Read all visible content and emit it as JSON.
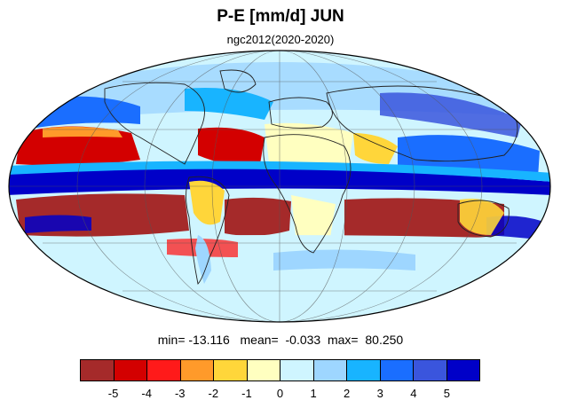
{
  "title": "P-E [mm/d] JUN",
  "subtitle": "ngc2012(2020-2020)",
  "stats": {
    "min_label": "min=",
    "min_value": "-13.116",
    "mean_label": "mean=",
    "mean_value": "-0.033",
    "max_label": "max=",
    "max_value": "80.250"
  },
  "colorbar": {
    "colors": [
      "#a52a2a",
      "#d30000",
      "#ff1a1a",
      "#ff9a2a",
      "#ffd63a",
      "#ffffc0",
      "#cff5ff",
      "#9ed6ff",
      "#18b4ff",
      "#1a6eff",
      "#3a55dd",
      "#0000c8"
    ],
    "labels": [
      "-5",
      "-4",
      "-3",
      "-2",
      "-1",
      "0",
      "1",
      "2",
      "3",
      "4",
      "5"
    ]
  },
  "map": {
    "projection": "mollweide",
    "variable": "P-E",
    "unit": "mm/d",
    "month": "JUN",
    "ocean_base_color": "#cff5ff"
  }
}
